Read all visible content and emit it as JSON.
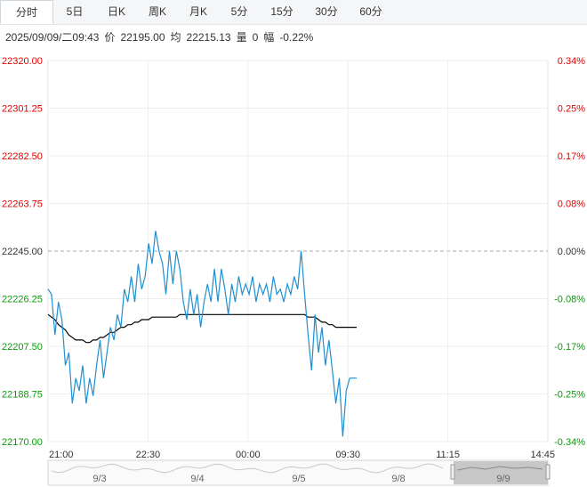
{
  "tabs": [
    {
      "label": "分时",
      "active": true
    },
    {
      "label": "5日",
      "active": false
    },
    {
      "label": "日K",
      "active": false
    },
    {
      "label": "周K",
      "active": false
    },
    {
      "label": "月K",
      "active": false
    },
    {
      "label": "5分",
      "active": false
    },
    {
      "label": "15分",
      "active": false
    },
    {
      "label": "30分",
      "active": false
    },
    {
      "label": "60分",
      "active": false
    }
  ],
  "info": {
    "datetime": "2025/09/09/二09:43",
    "price_label": "价",
    "price_value": "22195.00",
    "avg_label": "均",
    "avg_value": "22215.13",
    "volume_label": "量",
    "volume_value": "0",
    "change_label": "幅",
    "change_value": "-0.22%"
  },
  "colors": {
    "up": "#e60000",
    "down": "#0a9b0a",
    "neutral": "#333333",
    "price_line": "#1f8fd0",
    "avg_line": "#000000",
    "grid": "#eeeeee",
    "zero_line": "#aaaaaa"
  },
  "chart_data": {
    "type": "line",
    "ylim": [
      22170.0,
      22320.0
    ],
    "base_price": 22245.0,
    "y_ticks": [
      "22320.00",
      "22301.25",
      "22282.50",
      "22263.75",
      "22245.00",
      "22226.25",
      "22207.50",
      "22188.75",
      "22170.00"
    ],
    "y_pct_ticks": [
      "0.34%",
      "0.25%",
      "0.17%",
      "0.08%",
      "0.00%",
      "-0.08%",
      "-0.17%",
      "-0.25%",
      "-0.34%"
    ],
    "x_ticks": [
      "21:00",
      "22:30",
      "00:00",
      "09:30",
      "11:15",
      "14:45"
    ],
    "session_total_minutes": 600,
    "series": [
      {
        "values": [
          22230,
          22228,
          22212,
          22225,
          22218,
          22200,
          22205,
          22185,
          22195,
          22190,
          22200,
          22185,
          22195,
          22188,
          22200,
          22210,
          22195,
          22205,
          22215,
          22210,
          22220,
          22215,
          22230,
          22225,
          22235,
          22225,
          22240,
          22230,
          22235,
          22248,
          22240,
          22253,
          22245,
          22240,
          22228,
          22245,
          22232,
          22245,
          22238,
          22225,
          22218,
          22230,
          22220,
          22228,
          22215,
          22225,
          22232,
          22225,
          22238,
          22225,
          22238,
          22230,
          22220,
          22232,
          22225,
          22235,
          22228,
          22232,
          22228,
          22235,
          22225,
          22232,
          22228,
          22232,
          22225,
          22235,
          22228,
          22230,
          22225,
          22232,
          22228,
          22235,
          22230,
          22245,
          22228,
          22212,
          22198,
          22220,
          22205,
          22215,
          22200,
          22210,
          22198,
          22185,
          22195,
          22172,
          22190,
          22195,
          22195,
          22195
        ],
        "avg": [
          22220,
          22219,
          22218,
          22216,
          22215,
          22214,
          22212,
          22211,
          22210,
          22210,
          22210,
          22209,
          22209,
          22210,
          22210,
          22211,
          22211,
          22212,
          22213,
          22213,
          22214,
          22215,
          22215,
          22216,
          22216,
          22217,
          22217,
          22218,
          22218,
          22218,
          22219,
          22219,
          22219,
          22219,
          22219,
          22219,
          22219,
          22219,
          22220,
          22220,
          22220,
          22220,
          22220,
          22220,
          22220,
          22220,
          22220,
          22220,
          22220,
          22220,
          22220,
          22220,
          22220,
          22220,
          22220,
          22220,
          22220,
          22220,
          22220,
          22220,
          22220,
          22220,
          22220,
          22220,
          22220,
          22220,
          22220,
          22220,
          22220,
          22220,
          22220,
          22220,
          22220,
          22220,
          22220,
          22219,
          22219,
          22219,
          22218,
          22217,
          22217,
          22216,
          22216,
          22215,
          22215,
          22215,
          22215,
          22215,
          22215,
          22215
        ]
      }
    ]
  },
  "navigator": {
    "labels": [
      "9/3",
      "9/4",
      "9/5",
      "9/8",
      "9/9"
    ]
  }
}
